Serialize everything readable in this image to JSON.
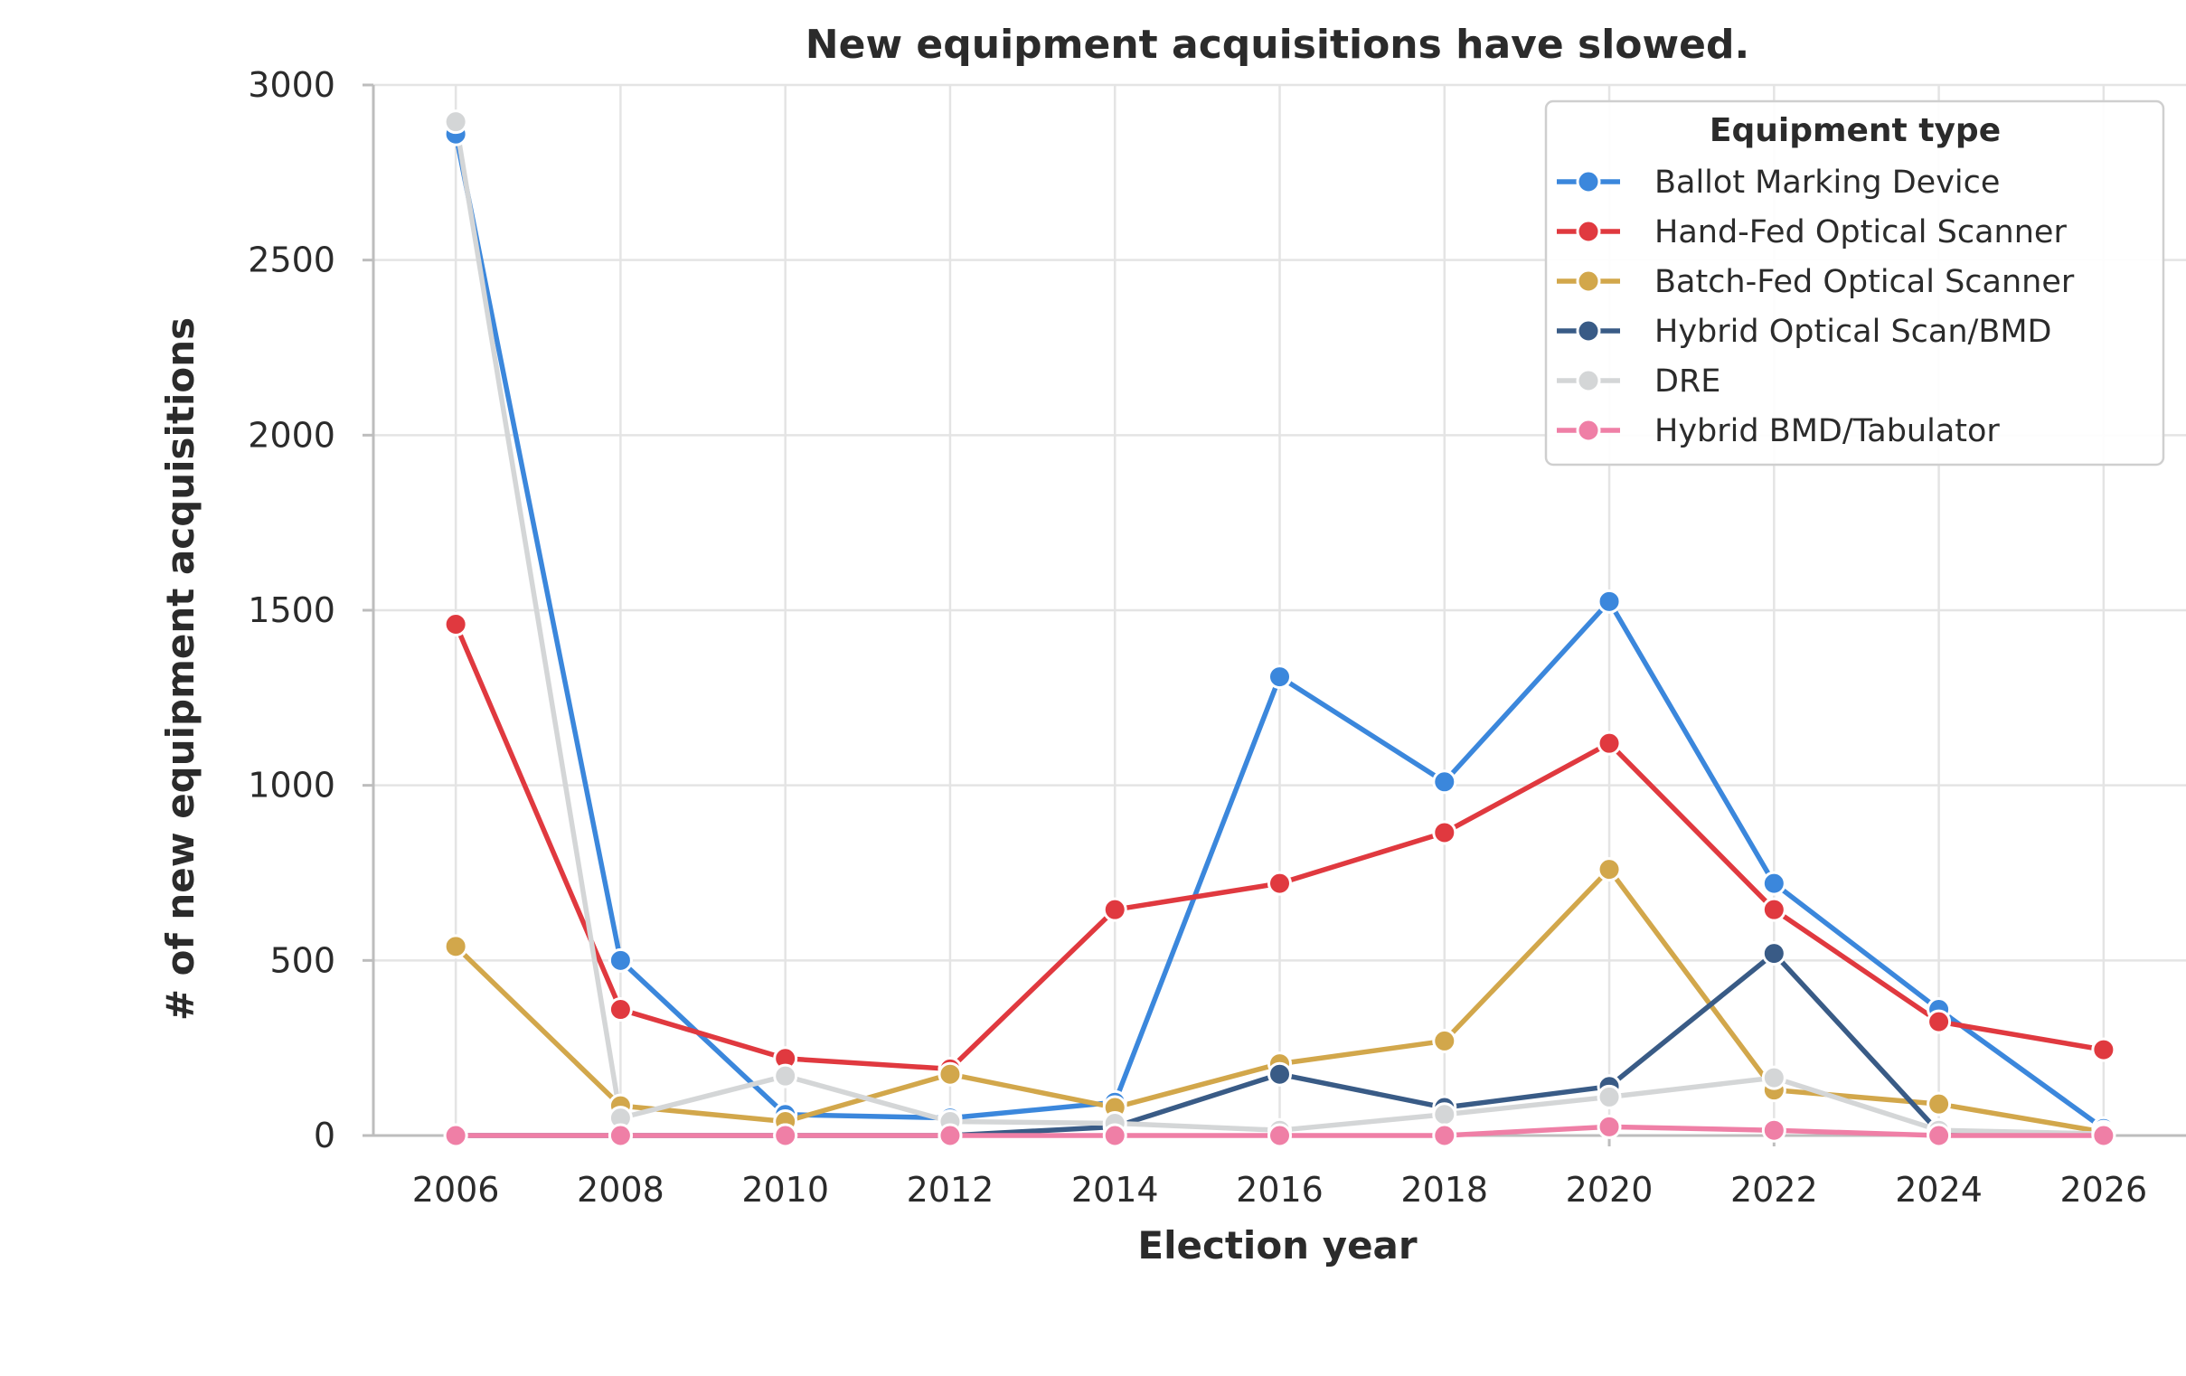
{
  "chart_data": {
    "type": "line",
    "title": "New equipment acquisitions have slowed.",
    "xlabel": "Election year",
    "ylabel": "# of new equipment acquisitions",
    "x": [
      2006,
      2008,
      2010,
      2012,
      2014,
      2016,
      2018,
      2020,
      2022,
      2024,
      2026
    ],
    "x_ticks": [
      "2006",
      "2008",
      "2010",
      "2012",
      "2014",
      "2016",
      "2018",
      "2020",
      "2022",
      "2024",
      "2026"
    ],
    "y_ticks": [
      "0",
      "500",
      "1000",
      "1500",
      "2000",
      "2500",
      "3000"
    ],
    "xlim": [
      2005,
      2027
    ],
    "ylim": [
      0,
      3000
    ],
    "grid": true,
    "legend_title": "Equipment type",
    "legend_position": "top-right",
    "series": [
      {
        "name": "Ballot Marking Device",
        "color": "#3b87dc",
        "values": [
          2860,
          500,
          60,
          50,
          95,
          1310,
          1010,
          1525,
          720,
          360,
          20
        ]
      },
      {
        "name": "Hand-Fed Optical Scanner",
        "color": "#e0393f",
        "values": [
          1460,
          360,
          220,
          190,
          645,
          720,
          865,
          1120,
          645,
          325,
          245
        ]
      },
      {
        "name": "Batch-Fed Optical Scanner",
        "color": "#d2a74b",
        "values": [
          540,
          85,
          40,
          175,
          80,
          205,
          270,
          760,
          130,
          90,
          10
        ]
      },
      {
        "name": "Hybrid Optical Scan/BMD",
        "color": "#395b86",
        "values": [
          0,
          0,
          0,
          0,
          25,
          175,
          80,
          140,
          520,
          10,
          5
        ]
      },
      {
        "name": "DRE",
        "color": "#d4d6d7",
        "values": [
          2895,
          50,
          170,
          40,
          35,
          15,
          60,
          110,
          165,
          15,
          5
        ]
      },
      {
        "name": "Hybrid BMD/Tabulator",
        "color": "#ef7fa6",
        "values": [
          0,
          0,
          0,
          0,
          0,
          0,
          0,
          25,
          15,
          0,
          0
        ]
      }
    ]
  }
}
